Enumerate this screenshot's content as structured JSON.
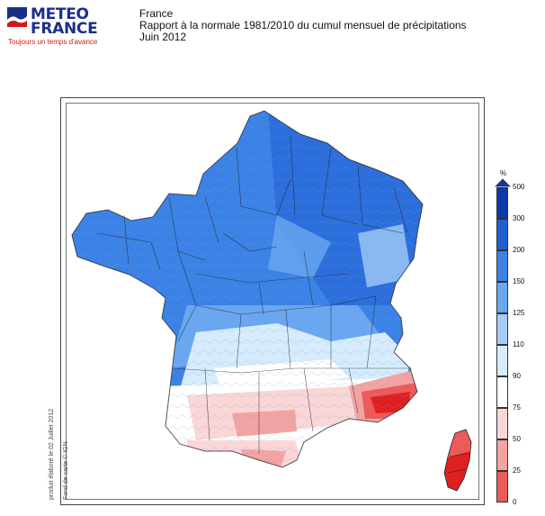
{
  "logo": {
    "line1": "METEO",
    "line2": "FRANCE",
    "tagline": "Toujours un temps d'avance",
    "colors": {
      "brand": "#1b2f8a",
      "tagline": "#d11a1a"
    }
  },
  "header": {
    "region": "France",
    "title": "Rapport à la normale 1981/2010 du cumul mensuel de précipitations",
    "period": "Juin 2012"
  },
  "credits": {
    "produced": "produit élaboré le 02 Juillet 2012",
    "basemap": "Fond de carte © IGN"
  },
  "legend": {
    "unit": "%",
    "classes": [
      {
        "label": "500",
        "color": "#0b3aa8"
      },
      {
        "label": "300",
        "color": "#1f5fd2"
      },
      {
        "label": "200",
        "color": "#3c82e6"
      },
      {
        "label": "150",
        "color": "#6aa7f0"
      },
      {
        "label": "125",
        "color": "#a3ccf7"
      },
      {
        "label": "110",
        "color": "#d6ecfc"
      },
      {
        "label": "90",
        "color": "#ffffff"
      },
      {
        "label": "75",
        "color": "#fbd6d6"
      },
      {
        "label": "50",
        "color": "#f4a3a3"
      },
      {
        "label": "25",
        "color": "#ec5a5a"
      },
      {
        "label": "0",
        "color": "#e01f1f"
      }
    ]
  }
}
